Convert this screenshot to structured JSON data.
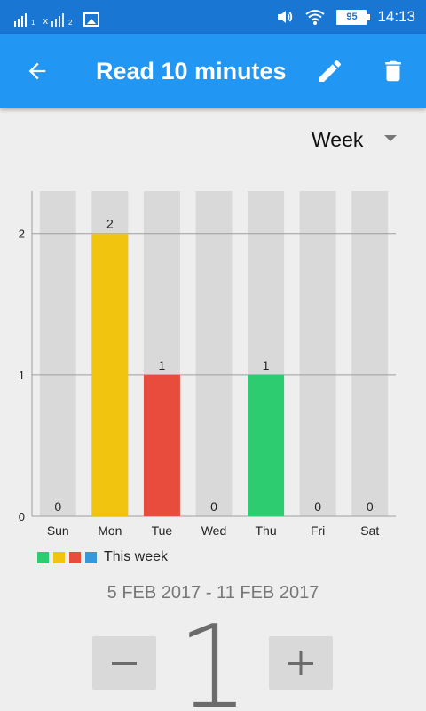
{
  "status_bar": {
    "sim1_sub": "1",
    "sim2_prefix": "x",
    "sim2_sub": "2",
    "battery": "95",
    "time": "14:13"
  },
  "app_bar": {
    "title": "Read 10 minutes",
    "back_icon": "arrow-back-icon",
    "edit_icon": "pencil-icon",
    "delete_icon": "trash-icon"
  },
  "period_selector": {
    "value": "Week"
  },
  "chart_data": {
    "type": "bar",
    "categories": [
      "Sun",
      "Mon",
      "Tue",
      "Wed",
      "Thu",
      "Fri",
      "Sat"
    ],
    "values": [
      0,
      2,
      1,
      0,
      1,
      0,
      0
    ],
    "bar_colors": [
      "#d9d9d9",
      "#f1c40f",
      "#e74c3c",
      "#d9d9d9",
      "#2ecc71",
      "#d9d9d9",
      "#d9d9d9"
    ],
    "background_bar_color": "#d9d9d9",
    "y_ticks": [
      0,
      1,
      2
    ],
    "ylim": [
      0,
      2.3
    ],
    "grid": true,
    "legend": "bottom-left",
    "series": [
      {
        "name": "This week",
        "values": [
          0,
          2,
          1,
          0,
          1,
          0,
          0
        ]
      }
    ]
  },
  "legend": {
    "swatches": [
      "#2ecc71",
      "#f1c40f",
      "#e74c3c",
      "#3498db"
    ],
    "label": "This week"
  },
  "date_range": "5 FEB 2017 - 11 FEB 2017",
  "counter": {
    "value": "1",
    "minus_label": "−",
    "plus_label": "+"
  },
  "colors": {
    "status_bar": "#1976d2",
    "app_bar": "#2196f3",
    "background": "#eeeeee"
  }
}
